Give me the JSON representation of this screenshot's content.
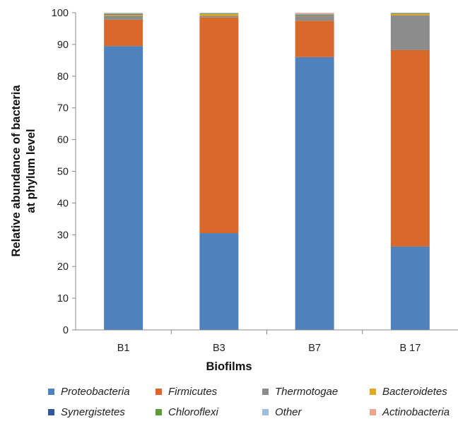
{
  "chart_data": {
    "type": "bar",
    "stacked": true,
    "categories": [
      "B1",
      "B3",
      "B7",
      "B 17"
    ],
    "xlabel": "Biofilms",
    "ylabel": [
      "Relative abundance of bacteria",
      "at phylum level"
    ],
    "ylim": [
      0,
      100
    ],
    "yticks": [
      0,
      10,
      20,
      30,
      40,
      50,
      60,
      70,
      80,
      90,
      100
    ],
    "grid": false,
    "legend_position": "bottom",
    "series": [
      {
        "name": "Proteobacteria",
        "color": "#4f81bd",
        "values": [
          89.5,
          30.5,
          86.0,
          26.3
        ]
      },
      {
        "name": "Firmicutes",
        "color": "#d9692b",
        "values": [
          8.3,
          68.0,
          11.5,
          61.9
        ]
      },
      {
        "name": "Thermotogae",
        "color": "#8c8c8c",
        "values": [
          1.2,
          0.5,
          1.5,
          11.0
        ]
      },
      {
        "name": "Bacteroidetes",
        "color": "#e0ac1a",
        "values": [
          0.4,
          0.6,
          0.2,
          0.5
        ]
      },
      {
        "name": "Synergistetes",
        "color": "#2f569b",
        "values": [
          0.2,
          0.1,
          0.2,
          0.1
        ]
      },
      {
        "name": "Chloroflexi",
        "color": "#5f9a3b",
        "values": [
          0.1,
          0.1,
          0.1,
          0.1
        ]
      },
      {
        "name": "Other",
        "color": "#9dbde3",
        "values": [
          0.2,
          0.1,
          0.2,
          0.1
        ]
      },
      {
        "name": "Actinobacteria",
        "color": "#f0a48e",
        "values": [
          0.1,
          0.1,
          0.3,
          0.0
        ]
      }
    ]
  }
}
